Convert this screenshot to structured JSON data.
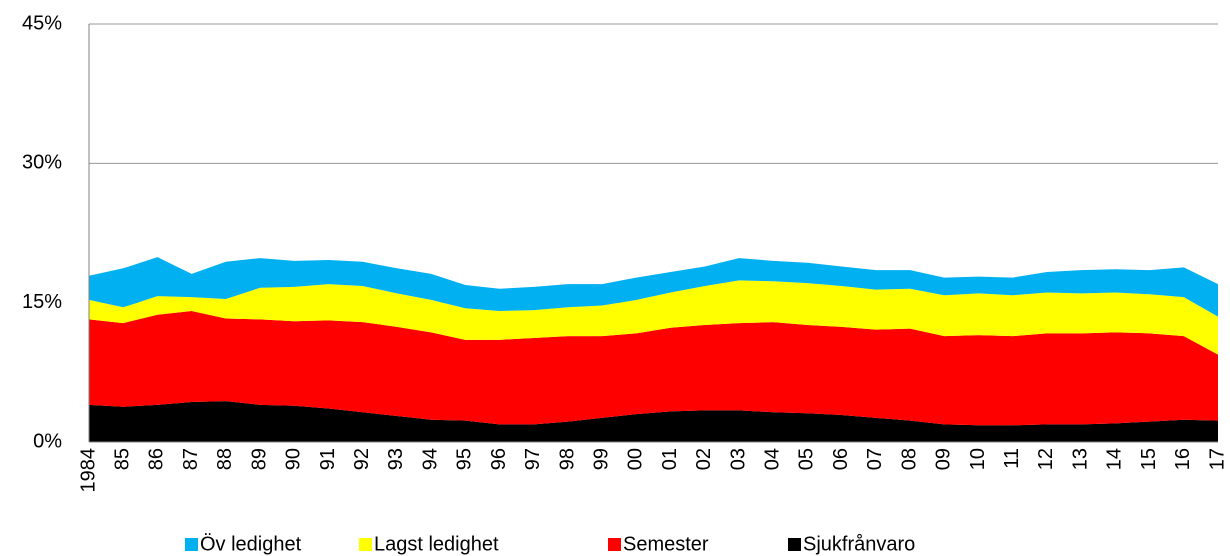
{
  "chart_data": {
    "type": "stacked_area",
    "categories": [
      "1984",
      "85",
      "86",
      "87",
      "88",
      "89",
      "90",
      "91",
      "92",
      "93",
      "94",
      "95",
      "96",
      "97",
      "98",
      "99",
      "00",
      "01",
      "02",
      "03",
      "04",
      "05",
      "06",
      "07",
      "08",
      "09",
      "10",
      "11",
      "12",
      "13",
      "14",
      "15",
      "16",
      "17"
    ],
    "series": [
      {
        "name": "Öv ledighet",
        "color": "#00b0f0",
        "values": [
          2.6,
          4.2,
          4.2,
          2.5,
          4.0,
          3.2,
          2.8,
          2.6,
          2.6,
          2.7,
          2.8,
          2.5,
          2.4,
          2.5,
          2.5,
          2.3,
          2.4,
          2.2,
          2.1,
          2.4,
          2.2,
          2.2,
          2.1,
          2.1,
          2.0,
          1.9,
          1.8,
          1.9,
          2.2,
          2.5,
          2.5,
          2.6,
          3.2,
          3.5
        ]
      },
      {
        "name": "Lagst ledighet",
        "color": "#ffff00",
        "values": [
          2.1,
          1.7,
          2.0,
          1.5,
          2.1,
          3.4,
          3.7,
          3.9,
          3.9,
          3.6,
          3.5,
          3.4,
          3.1,
          3.0,
          3.1,
          3.3,
          3.6,
          3.8,
          4.2,
          4.6,
          4.4,
          4.5,
          4.4,
          4.3,
          4.3,
          4.4,
          4.5,
          4.4,
          4.4,
          4.3,
          4.3,
          4.2,
          4.2,
          4.1
        ]
      },
      {
        "name": "Semester",
        "color": "#ff0000",
        "values": [
          9.2,
          9.0,
          9.7,
          9.8,
          8.9,
          9.2,
          9.1,
          9.5,
          9.7,
          9.6,
          9.4,
          8.7,
          9.1,
          9.3,
          9.2,
          8.8,
          8.7,
          9.0,
          9.2,
          9.4,
          9.7,
          9.5,
          9.5,
          9.5,
          9.9,
          9.5,
          9.7,
          9.6,
          9.8,
          9.8,
          9.8,
          9.5,
          9.0,
          7.1
        ]
      },
      {
        "name": "Sjukfrånvaro",
        "color": "#000000",
        "values": [
          4.0,
          3.8,
          4.0,
          4.3,
          4.4,
          4.0,
          3.9,
          3.6,
          3.2,
          2.8,
          2.4,
          2.3,
          1.9,
          1.9,
          2.2,
          2.6,
          3.0,
          3.3,
          3.4,
          3.4,
          3.2,
          3.1,
          2.9,
          2.6,
          2.3,
          1.9,
          1.8,
          1.8,
          1.9,
          1.9,
          2.0,
          2.2,
          2.4,
          2.3
        ]
      }
    ],
    "ylim": [
      0,
      45
    ],
    "yticks": [
      {
        "value": 0,
        "label": "0%"
      },
      {
        "value": 15,
        "label": "15%"
      },
      {
        "value": 30,
        "label": "30%"
      },
      {
        "value": 45,
        "label": "45%"
      }
    ],
    "grid": true
  }
}
